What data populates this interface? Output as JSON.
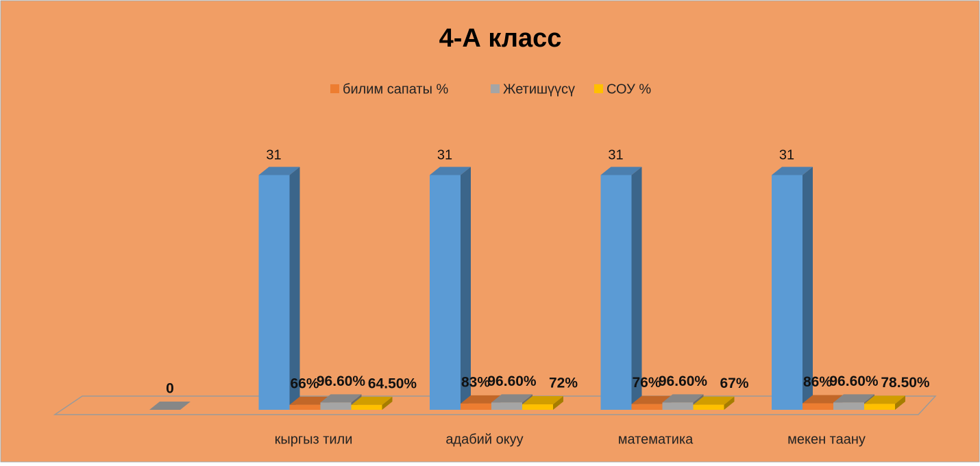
{
  "chart_data": {
    "type": "bar3d",
    "title": "4-А класс",
    "categories": [
      null,
      "кыргыз тили",
      "адабий окуу",
      "математика",
      "мекен таану"
    ],
    "series": [
      {
        "color": "#5b9bd5",
        "values": [
          null,
          31,
          31,
          31,
          31
        ]
      },
      {
        "name": "билим сапаты %",
        "color": "#ed7d31",
        "values": [
          null,
          0.66,
          0.83,
          0.76,
          0.86
        ],
        "value_labels": [
          null,
          "66%",
          "83%",
          "76%",
          "86%"
        ]
      },
      {
        "name": "Жетишүүсү",
        "color": "#a5a5a5",
        "values": [
          0,
          0.966,
          0.966,
          0.966,
          0.966
        ],
        "value_labels": [
          "0",
          "96.60%",
          "96.60%",
          "96.60%",
          "96.60%"
        ]
      },
      {
        "name": "СОУ %",
        "color": "#ffc000",
        "values": [
          null,
          0.645,
          0.72,
          0.67,
          0.785
        ],
        "value_labels": [
          null,
          "64.50%",
          "72%",
          "67%",
          "78.50%"
        ]
      }
    ],
    "ylim": [
      0,
      40
    ],
    "legend": "top"
  }
}
